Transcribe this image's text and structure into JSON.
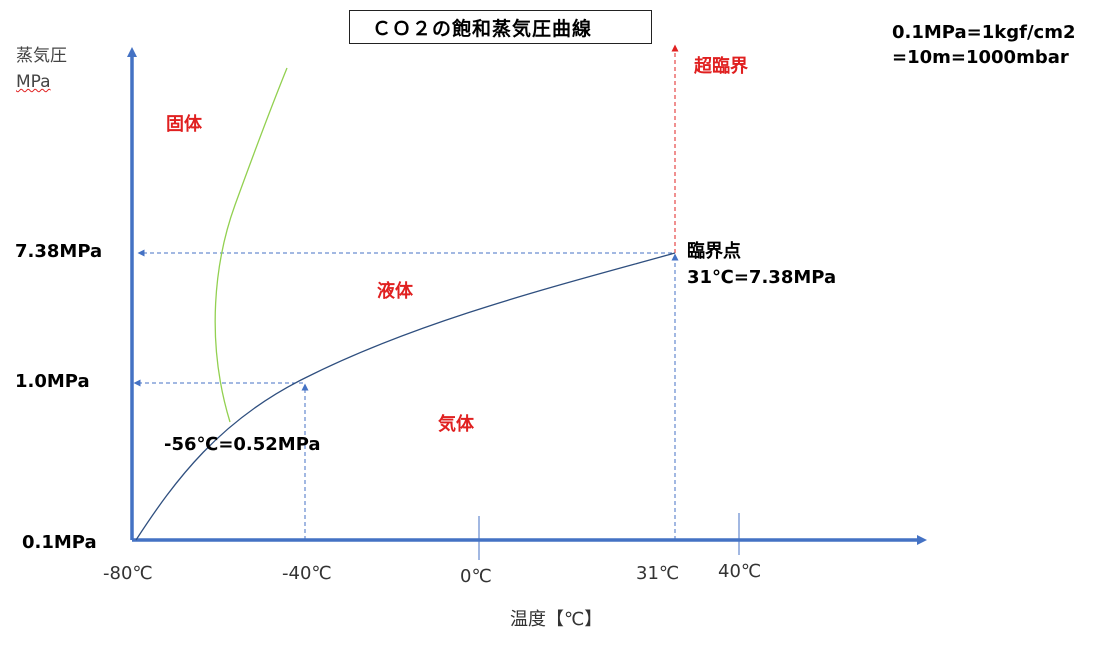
{
  "title": "ＣＯ２の飽和蒸気圧曲線",
  "conversion_note": {
    "line1": "0.1MPa=1kgf/cm2",
    "line2": "=10m=1000mbar"
  },
  "axis": {
    "y_title_line1": "蒸気圧",
    "y_title_line2": "MPa",
    "x_title": "温度【℃】"
  },
  "y_ticks": {
    "t738": "7.38MPa",
    "t10": "1.0MPa",
    "t01": "0.1MPa"
  },
  "x_ticks": {
    "m80": "-80℃",
    "m40": "-40℃",
    "zero": "0℃",
    "p31": "31℃",
    "p40": "40℃"
  },
  "regions": {
    "solid": "固体",
    "liquid": "液体",
    "gas": "気体",
    "supercritical": "超臨界"
  },
  "points": {
    "critical_name": "臨界点",
    "critical_value": "31℃=7.38MPa",
    "triple_value": "-56℃=0.52MPa"
  },
  "colors": {
    "axis": "#4472c4",
    "vapor_curve": "#2f4f7f",
    "melting_curve": "#92d050",
    "guide_lines": "#4472c4",
    "supercritical_arrow": "#e02020",
    "region_text": "#e02020"
  }
}
